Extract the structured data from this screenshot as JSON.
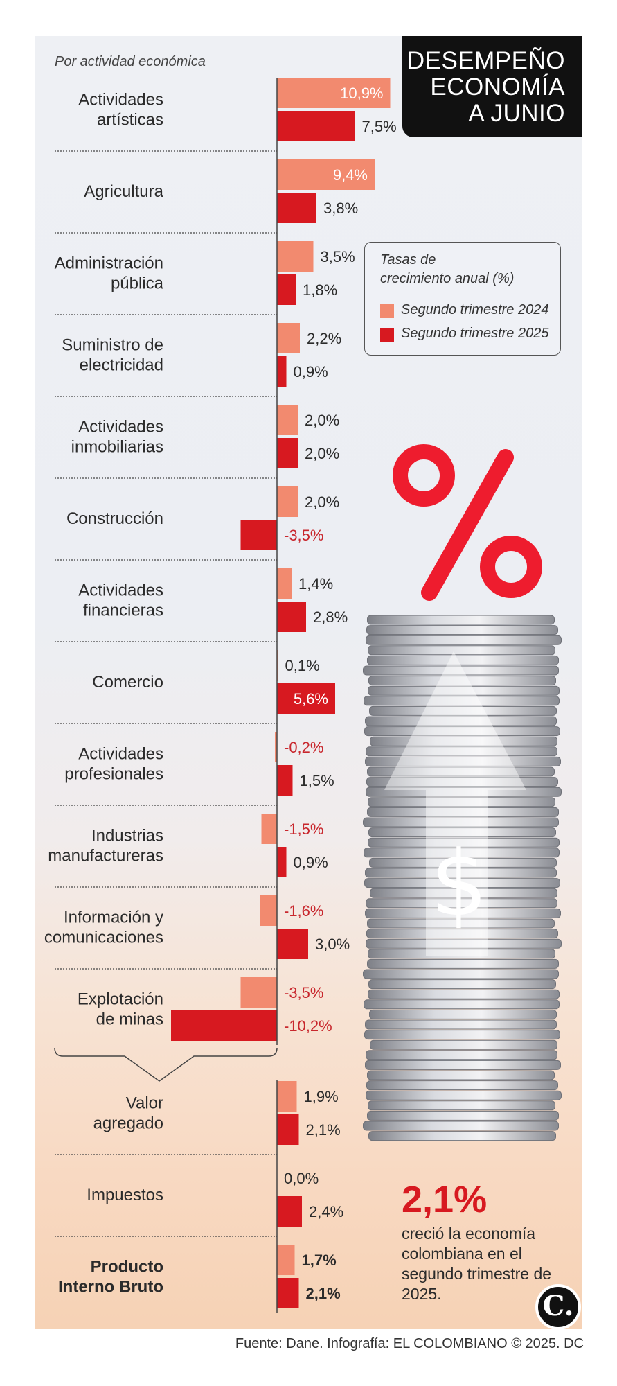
{
  "header": {
    "title_lines": [
      "DESEMPEÑO",
      "ECONOMÍA",
      "A JUNIO"
    ]
  },
  "subtitle": "Por actividad económica",
  "legend": {
    "title_lines": [
      "Tasas de",
      "crecimiento anual (%)"
    ],
    "items": [
      {
        "label": "Segundo trimestre 2024",
        "color": "#f28a6f"
      },
      {
        "label": "Segundo trimestre 2025",
        "color": "#d71920"
      }
    ]
  },
  "chart_data": {
    "type": "bar",
    "orientation": "horizontal",
    "series": [
      {
        "name": "Segundo trimestre 2024",
        "color": "#f28a6f"
      },
      {
        "name": "Segundo trimestre 2025",
        "color": "#d71920"
      }
    ],
    "categories": [
      {
        "lines": [
          "Actividades",
          "artísticas"
        ],
        "v2024": 10.9,
        "v2025": 7.5,
        "l2024": "10,9%",
        "l2025": "7,5%",
        "bold": false
      },
      {
        "lines": [
          "Agricultura"
        ],
        "v2024": 9.4,
        "v2025": 3.8,
        "l2024": "9,4%",
        "l2025": "3,8%",
        "bold": false
      },
      {
        "lines": [
          "Administración",
          "pública"
        ],
        "v2024": 3.5,
        "v2025": 1.8,
        "l2024": "3,5%",
        "l2025": "1,8%",
        "bold": false
      },
      {
        "lines": [
          "Suministro de",
          "electricidad"
        ],
        "v2024": 2.2,
        "v2025": 0.9,
        "l2024": "2,2%",
        "l2025": "0,9%",
        "bold": false
      },
      {
        "lines": [
          "Actividades",
          "inmobiliarias"
        ],
        "v2024": 2.0,
        "v2025": 2.0,
        "l2024": "2,0%",
        "l2025": "2,0%",
        "bold": false
      },
      {
        "lines": [
          "Construcción"
        ],
        "v2024": 2.0,
        "v2025": -3.5,
        "l2024": "2,0%",
        "l2025": "-3,5%",
        "bold": false
      },
      {
        "lines": [
          "Actividades",
          "financieras"
        ],
        "v2024": 1.4,
        "v2025": 2.8,
        "l2024": "1,4%",
        "l2025": "2,8%",
        "bold": false
      },
      {
        "lines": [
          "Comercio"
        ],
        "v2024": 0.1,
        "v2025": 5.6,
        "l2024": "0,1%",
        "l2025": "5,6%",
        "bold": false
      },
      {
        "lines": [
          "Actividades",
          "profesionales"
        ],
        "v2024": -0.2,
        "v2025": 1.5,
        "l2024": "-0,2%",
        "l2025": "1,5%",
        "bold": false
      },
      {
        "lines": [
          "Industrias",
          "manufactureras"
        ],
        "v2024": -1.5,
        "v2025": 0.9,
        "l2024": "-1,5%",
        "l2025": "0,9%",
        "bold": false
      },
      {
        "lines": [
          "Información y",
          "comunicaciones"
        ],
        "v2024": -1.6,
        "v2025": 3.0,
        "l2024": "-1,6%",
        "l2025": "3,0%",
        "bold": false
      },
      {
        "lines": [
          "Explotación",
          "de minas"
        ],
        "v2024": -3.5,
        "v2025": -10.2,
        "l2024": "-3,5%",
        "l2025": "-10,2%",
        "bold": false
      },
      {
        "lines": [
          "Valor",
          "agregado"
        ],
        "v2024": 1.9,
        "v2025": 2.1,
        "l2024": "1,9%",
        "l2025": "2,1%",
        "bold": false
      },
      {
        "lines": [
          "Impuestos"
        ],
        "v2024": 0.0,
        "v2025": 2.4,
        "l2024": "0,0%",
        "l2025": "2,4%",
        "bold": false
      },
      {
        "lines": [
          "Producto",
          "Interno Bruto"
        ],
        "v2024": 1.7,
        "v2025": 2.1,
        "l2024": "1,7%",
        "l2025": "2,1%",
        "bold": true
      }
    ]
  },
  "highlight": {
    "value": "2,1%",
    "text": "creció la economía colombiana en el segundo trimestre de 2025."
  },
  "logo": {
    "letter": "C."
  },
  "source": "Fuente: Dane. Infografía: EL COLOMBIANO © 2025. DC"
}
